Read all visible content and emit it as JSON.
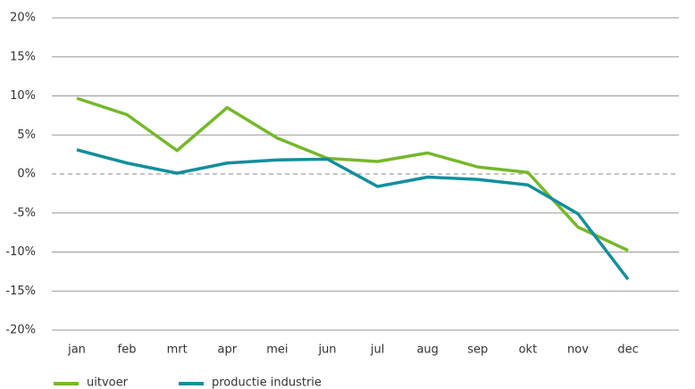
{
  "chart_data": {
    "type": "line",
    "categories": [
      "jan",
      "feb",
      "mrt",
      "apr",
      "mei",
      "jun",
      "jul",
      "aug",
      "sep",
      "okt",
      "nov",
      "dec"
    ],
    "series": [
      {
        "name": "uitvoer",
        "color": "#76b82a",
        "values": [
          9.7,
          7.6,
          3.0,
          8.5,
          4.6,
          2.0,
          1.6,
          2.7,
          0.9,
          0.2,
          -6.8,
          -9.8
        ]
      },
      {
        "name": "productie industrie",
        "color": "#138e9c",
        "values": [
          3.1,
          1.4,
          0.1,
          1.4,
          1.8,
          1.9,
          -1.6,
          -0.4,
          -0.7,
          -1.4,
          -5.1,
          -13.5
        ]
      }
    ],
    "ylim": [
      -20,
      20
    ],
    "yticks": [
      {
        "value": -20,
        "label": "-20%"
      },
      {
        "value": -15,
        "label": "-15%"
      },
      {
        "value": -10,
        "label": "-10%"
      },
      {
        "value": -5,
        "label": "-5%"
      },
      {
        "value": 0,
        "label": "0%"
      },
      {
        "value": 5,
        "label": "5%"
      },
      {
        "value": 10,
        "label": "10%"
      },
      {
        "value": 15,
        "label": "15%"
      },
      {
        "value": 20,
        "label": "20%"
      }
    ],
    "grid": true,
    "legend": "bottom"
  }
}
